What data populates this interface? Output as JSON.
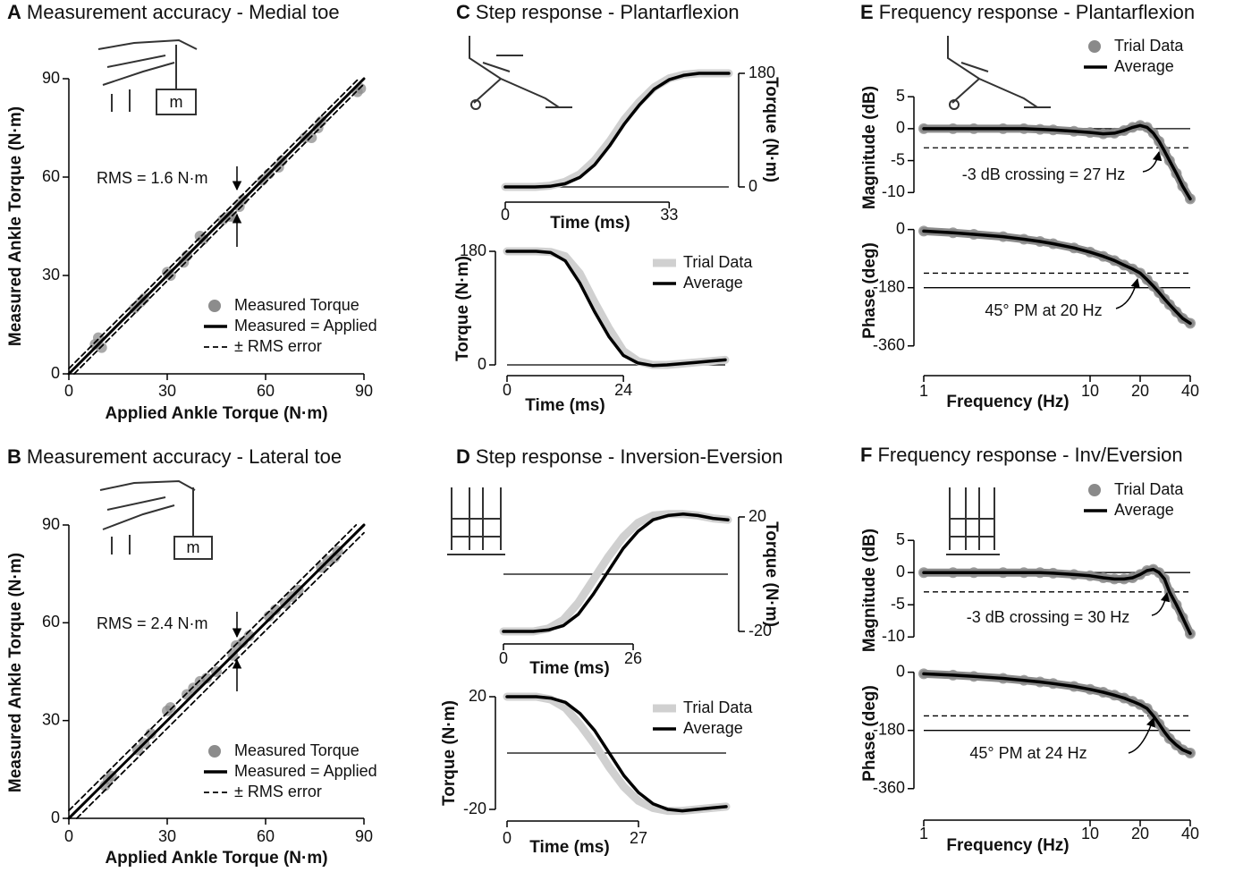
{
  "chart_data": [
    {
      "type": "scatter",
      "panel": "A",
      "title": "Measurement accuracy - Medial toe",
      "icon_label": "m",
      "xlabel": "Applied Ankle Torque (N·m)",
      "ylabel": "Measured Ankle Torque (N·m)",
      "xlim": [
        0,
        90
      ],
      "ylim": [
        0,
        90
      ],
      "xticks": [
        0,
        30,
        60,
        90
      ],
      "yticks": [
        0,
        30,
        60,
        90
      ],
      "annotation": "RMS = 1.6 N·m",
      "legend": "lower right",
      "series": [
        {
          "name": "Measured Torque",
          "color": "#8c8c8c",
          "marker": "circle",
          "x": [
            8,
            9,
            10,
            20,
            22,
            23,
            30,
            31,
            35,
            36,
            40,
            41,
            47,
            49,
            50,
            52,
            53,
            59,
            61,
            64,
            65,
            72,
            74,
            76,
            77,
            88,
            89
          ],
          "y": [
            9,
            11,
            8,
            20,
            22,
            23,
            31,
            30,
            34,
            36,
            42,
            41,
            47,
            48,
            48,
            51,
            53,
            59,
            61,
            63,
            65,
            72,
            72,
            75,
            77,
            86,
            87
          ]
        },
        {
          "name": "Measured = Applied",
          "color": "#000000",
          "linestyle": "solid",
          "x": [
            0,
            90
          ],
          "y": [
            0,
            90
          ]
        },
        {
          "name": "± RMS error",
          "color": "#000000",
          "linestyle": "dashed",
          "x": [
            0,
            88.4,
            null,
            1.6,
            90
          ],
          "y": [
            1.6,
            90,
            null,
            0,
            88.4
          ]
        }
      ]
    },
    {
      "type": "scatter",
      "panel": "B",
      "title": "Measurement accuracy - Lateral toe",
      "icon_label": "m",
      "xlabel": "Applied Ankle Torque (N·m)",
      "ylabel": "Measured Ankle Torque (N·m)",
      "xlim": [
        0,
        90
      ],
      "ylim": [
        0,
        90
      ],
      "xticks": [
        0,
        30,
        60,
        90
      ],
      "yticks": [
        0,
        30,
        60,
        90
      ],
      "annotation": "RMS = 2.4 N·m",
      "legend": "lower right",
      "series": [
        {
          "name": "Measured Torque",
          "color": "#8c8c8c",
          "marker": "circle",
          "x": [
            11,
            12,
            13,
            21,
            23,
            25,
            30,
            31,
            36,
            38,
            40,
            42,
            45,
            50,
            51,
            53,
            55,
            61,
            63,
            66,
            68,
            70,
            77,
            79,
            81,
            82
          ],
          "y": [
            10,
            12,
            13,
            21,
            23,
            26,
            33,
            34,
            38,
            40,
            42,
            43,
            45,
            50,
            53,
            54,
            56,
            62,
            64,
            66,
            68,
            70,
            77,
            79,
            80,
            82
          ]
        },
        {
          "name": "Measured = Applied",
          "color": "#000000",
          "linestyle": "solid",
          "x": [
            0,
            90
          ],
          "y": [
            0,
            90
          ]
        },
        {
          "name": "± RMS error",
          "color": "#000000",
          "linestyle": "dashed",
          "x": [
            0,
            87.6,
            null,
            2.4,
            90
          ],
          "y": [
            2.4,
            90,
            null,
            0,
            87.6
          ]
        }
      ]
    },
    {
      "type": "line",
      "panel": "C",
      "title": "Step response - Plantarflexion",
      "yaxis": "right",
      "xlabel": "Time (ms)",
      "ylabel": "Torque (N·m)",
      "xlim": [
        0,
        45
      ],
      "ylim": [
        0,
        180
      ],
      "xticks": [
        0,
        33
      ],
      "yticks": [
        0,
        180
      ],
      "hlines": [
        {
          "value": 0,
          "style": "solid"
        }
      ],
      "x": [
        0,
        3,
        6,
        9,
        12,
        15,
        18,
        21,
        24,
        27,
        30,
        33,
        36,
        39,
        42,
        45
      ],
      "series": [
        {
          "color": "#d0d0d0",
          "values": [
            0,
            0,
            0,
            2,
            8,
            20,
            42,
            72,
            107,
            135,
            158,
            172,
            178,
            180,
            180,
            180
          ]
        },
        {
          "color": "#000000",
          "values": [
            0,
            0,
            0,
            1,
            5,
            15,
            35,
            65,
            100,
            130,
            155,
            170,
            177,
            180,
            180,
            180
          ]
        }
      ]
    },
    {
      "type": "line",
      "xlabel": "Time (ms)",
      "ylabel": "Torque (N·m)",
      "xlim": [
        0,
        45
      ],
      "ylim": [
        0,
        180
      ],
      "xticks": [
        0,
        24
      ],
      "yticks": [
        0,
        180
      ],
      "hlines": [
        {
          "value": 0,
          "style": "solid"
        }
      ],
      "legend": "upper right",
      "x": [
        0,
        3,
        6,
        9,
        12,
        15,
        18,
        21,
        24,
        27,
        30,
        33,
        36,
        39,
        42,
        45
      ],
      "series": [
        {
          "name": "Trial Data",
          "color": "#d0d0d0",
          "values": [
            180,
            180,
            180,
            179,
            172,
            145,
            100,
            58,
            22,
            6,
            0,
            0,
            2,
            4,
            6,
            8
          ]
        },
        {
          "name": "Average",
          "color": "#000000",
          "values": [
            180,
            180,
            180,
            178,
            165,
            130,
            85,
            45,
            15,
            3,
            -1,
            0,
            2,
            4,
            6,
            8
          ]
        }
      ]
    },
    {
      "type": "line",
      "panel": "D",
      "title": "Step response - Inversion-Eversion",
      "yaxis": "right",
      "xlabel": "Time (ms)",
      "ylabel": "Torque (N·m)",
      "xlim": [
        0,
        45
      ],
      "ylim": [
        -20,
        20
      ],
      "xticks": [
        0,
        26
      ],
      "yticks": [
        -20,
        20
      ],
      "hlines": [
        {
          "value": 0,
          "style": "solid"
        }
      ],
      "x": [
        0,
        3,
        6,
        9,
        12,
        15,
        18,
        21,
        24,
        27,
        30,
        33,
        36,
        39,
        42,
        45
      ],
      "series": [
        {
          "color": "#d0d0d0",
          "values": [
            -20,
            -20,
            -20,
            -19,
            -16,
            -10,
            -2,
            6,
            13,
            18,
            20.5,
            21,
            21,
            20.5,
            19.5,
            19
          ]
        },
        {
          "color": "#000000",
          "values": [
            -20,
            -20,
            -20,
            -19.5,
            -18,
            -14,
            -7,
            1,
            9,
            15,
            19,
            20.5,
            21,
            20.5,
            19.5,
            19
          ]
        }
      ]
    },
    {
      "type": "line",
      "xlabel": "Time (ms)",
      "ylabel": "Torque (N·m)",
      "xlim": [
        0,
        45
      ],
      "ylim": [
        -20,
        20
      ],
      "xticks": [
        0,
        27
      ],
      "yticks": [
        -20,
        20
      ],
      "hlines": [
        {
          "value": 0,
          "style": "solid"
        }
      ],
      "legend": "upper right",
      "x": [
        0,
        3,
        6,
        9,
        12,
        15,
        18,
        21,
        24,
        27,
        30,
        33,
        36,
        39,
        42,
        45
      ],
      "series": [
        {
          "name": "Trial Data",
          "color": "#d0d0d0",
          "values": [
            20,
            20,
            20,
            19,
            16,
            10,
            3,
            -5,
            -12,
            -17,
            -19.5,
            -20.5,
            -20.5,
            -20,
            -19.5,
            -19
          ]
        },
        {
          "name": "Average",
          "color": "#000000",
          "values": [
            20,
            20,
            20,
            19.5,
            18,
            14,
            8,
            0,
            -8,
            -14,
            -18,
            -20,
            -20.5,
            -20,
            -19.5,
            -19
          ]
        }
      ]
    },
    {
      "type": "line",
      "panel": "E",
      "title": "Frequency response - Plantarflexion",
      "xscale": "log",
      "ylabel": "Magnitude (dB)",
      "xlim": [
        1,
        40
      ],
      "ylim": [
        -11.5,
        6
      ],
      "yticks": [
        5,
        0,
        -5,
        -10
      ],
      "hlines": [
        {
          "value": 0,
          "style": "solid"
        },
        {
          "value": -3,
          "style": "dashed"
        }
      ],
      "annotation": "-3 dB crossing = 27 Hz",
      "legend": "upper right",
      "x": [
        1,
        1.5,
        2,
        3,
        4,
        5,
        6,
        8,
        10,
        12,
        14,
        16,
        18,
        20,
        22,
        24,
        26,
        28,
        30,
        33,
        36,
        40
      ],
      "series": [
        {
          "name": "Trial Data",
          "color": "#8a8a8a",
          "marker": "circle",
          "values": [
            0,
            0,
            0,
            0,
            0,
            -0.1,
            -0.2,
            -0.4,
            -0.6,
            -0.8,
            -0.7,
            -0.3,
            0.2,
            0.5,
            0.2,
            -0.7,
            -2,
            -3.5,
            -5,
            -7,
            -9,
            -11
          ]
        },
        {
          "name": "Average",
          "color": "#000000",
          "values": [
            0,
            0,
            0,
            0,
            0,
            -0.1,
            -0.2,
            -0.4,
            -0.6,
            -0.8,
            -0.7,
            -0.3,
            0.2,
            0.5,
            0.2,
            -0.7,
            -2,
            -3.5,
            -5,
            -7,
            -9,
            -11
          ]
        }
      ]
    },
    {
      "type": "line",
      "xscale": "log",
      "ylabel": "Phase (deg)",
      "xlabel": "Frequency (Hz)",
      "xlim": [
        1,
        40
      ],
      "ylim": [
        -380,
        10
      ],
      "xticks": [
        1,
        10,
        20,
        40
      ],
      "yticks": [
        0,
        -180,
        -360
      ],
      "hlines": [
        {
          "value": -135,
          "style": "dashed"
        },
        {
          "value": -180,
          "style": "solid"
        }
      ],
      "annotation": "45° PM at 20 Hz",
      "x": [
        1,
        1.5,
        2,
        3,
        4,
        5,
        6,
        8,
        10,
        12,
        14,
        16,
        18,
        20,
        22,
        24,
        26,
        28,
        30,
        33,
        36,
        40
      ],
      "series": [
        {
          "name": "Trial Data",
          "color": "#8a8a8a",
          "marker": "circle",
          "values": [
            -5,
            -10,
            -15,
            -22,
            -30,
            -37,
            -44,
            -57,
            -70,
            -83,
            -96,
            -110,
            -122,
            -135,
            -155,
            -175,
            -195,
            -215,
            -232,
            -255,
            -275,
            -290
          ]
        },
        {
          "name": "Average",
          "color": "#000000",
          "values": [
            -5,
            -10,
            -15,
            -22,
            -30,
            -37,
            -44,
            -57,
            -70,
            -83,
            -96,
            -110,
            -122,
            -135,
            -155,
            -175,
            -195,
            -215,
            -232,
            -255,
            -275,
            -290
          ]
        }
      ]
    },
    {
      "type": "line",
      "panel": "F",
      "title": "Frequency response - Inv/Eversion",
      "xscale": "log",
      "ylabel": "Magnitude (dB)",
      "xlim": [
        1,
        40
      ],
      "ylim": [
        -11.5,
        6
      ],
      "yticks": [
        5,
        0,
        -5,
        -10
      ],
      "hlines": [
        {
          "value": 0,
          "style": "solid"
        },
        {
          "value": -3,
          "style": "dashed"
        }
      ],
      "annotation": "-3 dB crossing = 30 Hz",
      "legend": "upper right",
      "x": [
        1,
        1.5,
        2,
        3,
        4,
        5,
        6,
        8,
        10,
        12,
        14,
        16,
        18,
        20,
        22,
        24,
        26,
        28,
        30,
        33,
        36,
        40
      ],
      "series": [
        {
          "name": "Trial Data",
          "color": "#8a8a8a",
          "marker": "circle",
          "values": [
            0,
            0,
            0,
            0,
            0,
            0,
            -0.1,
            -0.3,
            -0.5,
            -0.8,
            -1,
            -1,
            -0.8,
            -0.3,
            0.3,
            0.5,
            0,
            -1,
            -3,
            -5,
            -7,
            -9.5
          ]
        },
        {
          "name": "Average",
          "color": "#000000",
          "values": [
            0,
            0,
            0,
            0,
            0,
            0,
            -0.1,
            -0.3,
            -0.5,
            -0.8,
            -1,
            -1,
            -0.8,
            -0.3,
            0.3,
            0.5,
            0,
            -1,
            -3,
            -5,
            -7,
            -9.5
          ]
        }
      ]
    },
    {
      "type": "line",
      "xscale": "log",
      "ylabel": "Phase (deg)",
      "xlabel": "Frequency (Hz)",
      "xlim": [
        1,
        40
      ],
      "ylim": [
        -380,
        10
      ],
      "xticks": [
        1,
        10,
        20,
        40
      ],
      "yticks": [
        0,
        -180,
        -360
      ],
      "hlines": [
        {
          "value": -135,
          "style": "dashed"
        },
        {
          "value": -180,
          "style": "solid"
        }
      ],
      "annotation": "45° PM at 24 Hz",
      "x": [
        1,
        1.5,
        2,
        3,
        4,
        5,
        6,
        8,
        10,
        12,
        14,
        16,
        18,
        20,
        22,
        24,
        26,
        28,
        30,
        33,
        36,
        40
      ],
      "series": [
        {
          "name": "Trial Data",
          "color": "#8a8a8a",
          "marker": "circle",
          "values": [
            -5,
            -9,
            -13,
            -19,
            -25,
            -30,
            -35,
            -44,
            -53,
            -62,
            -71,
            -80,
            -90,
            -100,
            -112,
            -135,
            -160,
            -185,
            -205,
            -225,
            -240,
            -250
          ]
        },
        {
          "name": "Average",
          "color": "#000000",
          "values": [
            -5,
            -9,
            -13,
            -19,
            -25,
            -30,
            -35,
            -44,
            -53,
            -62,
            -71,
            -80,
            -90,
            -100,
            -112,
            -135,
            -160,
            -185,
            -205,
            -225,
            -240,
            -250
          ]
        }
      ]
    }
  ]
}
